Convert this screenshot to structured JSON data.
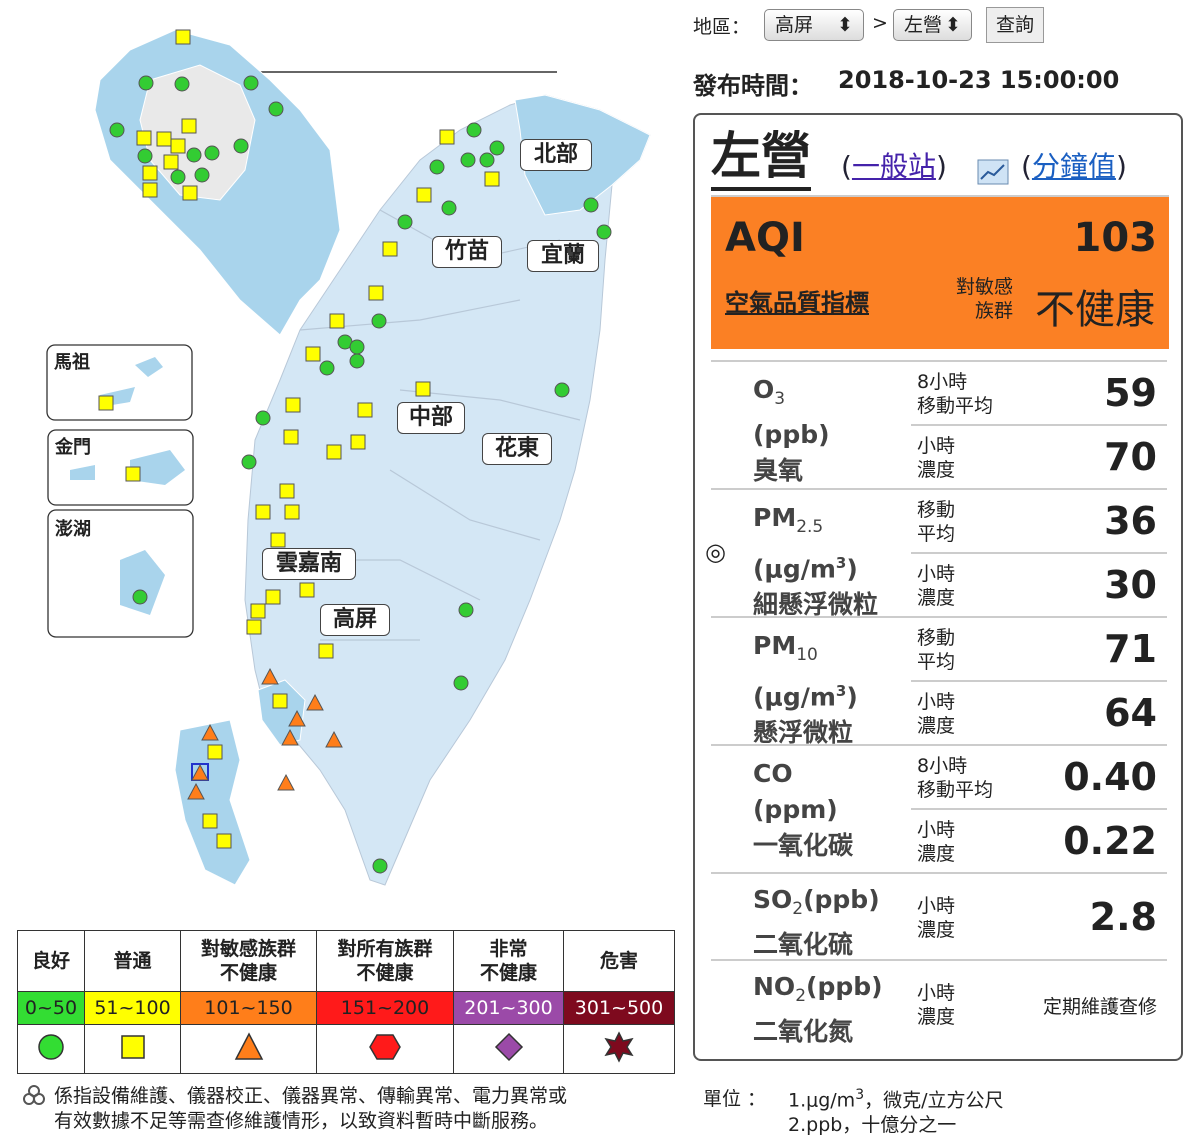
{
  "controls": {
    "region_label": "地區：",
    "region": "高屏",
    "separator": ">",
    "station": "左營",
    "query_button": "查詢"
  },
  "publish": {
    "label": "發布時間：",
    "time": "2018-10-23 15:00:00"
  },
  "map": {
    "regions": [
      "北部",
      "竹苗",
      "宜蘭",
      "中部",
      "花東",
      "雲嘉南",
      "高屏"
    ],
    "insets": [
      "馬祖",
      "金門",
      "澎湖"
    ]
  },
  "legend": {
    "categories": [
      {
        "name": [
          "良好"
        ],
        "range": "0~50",
        "color": "#33dd33"
      },
      {
        "name": [
          "普通"
        ],
        "range": "51~100",
        "color": "#ffff00"
      },
      {
        "name": [
          "對敏感族群",
          "不健康"
        ],
        "range": "101~150",
        "color": "#ff7e1a"
      },
      {
        "name": [
          "對所有族群",
          "不健康"
        ],
        "range": "151~200",
        "color": "#ff1a1a"
      },
      {
        "name": [
          "非常",
          "不健康"
        ],
        "range": "201~300",
        "color": "#9b4aa8"
      },
      {
        "name": [
          "危害"
        ],
        "range": "301~500",
        "color": "#7e0a1e"
      }
    ]
  },
  "note": [
    "係指設備維護、儀器校正、儀器異常、傳輸異常、電力異常或",
    "有效數據不足等需查修維護情形，以致資料暫時中斷服務。"
  ],
  "panel": {
    "station": "左營",
    "brackets": [
      "(",
      ")"
    ],
    "station_type": "一般站",
    "minute_link": "分鐘值",
    "aqi_label": "AQI",
    "aqi": "103",
    "aqi_name": "空氣品質指標",
    "status_small": [
      "對敏感",
      "族群"
    ],
    "status": "不健康",
    "pollutants": [
      {
        "name": "O",
        "sub": "3",
        "unit": [
          "(ppb)"
        ],
        "cname": "臭氧",
        "readings": [
          {
            "label": [
              "8小時",
              "移動平均"
            ],
            "value": "59"
          },
          {
            "label": [
              "小時",
              "濃度"
            ],
            "value": "70"
          }
        ]
      },
      {
        "marker": "◎",
        "name": "PM",
        "sub": "2.5",
        "unit": [
          "(μg/m",
          "3",
          ")"
        ],
        "cname": "細懸浮微粒",
        "readings": [
          {
            "label": [
              "移動",
              "平均"
            ],
            "value": "36"
          },
          {
            "label": [
              "小時",
              "濃度"
            ],
            "value": "30"
          }
        ]
      },
      {
        "name": "PM",
        "sub": "10",
        "unit": [
          "(μg/m",
          "3",
          ")"
        ],
        "cname": "懸浮微粒",
        "readings": [
          {
            "label": [
              "移動",
              "平均"
            ],
            "value": "71"
          },
          {
            "label": [
              "小時",
              "濃度"
            ],
            "value": "64"
          }
        ]
      },
      {
        "name": "CO",
        "unit": [
          "(ppm)"
        ],
        "cname": "一氧化碳",
        "readings": [
          {
            "label": [
              "8小時",
              "移動平均"
            ],
            "value": "0.40"
          },
          {
            "label": [
              "小時",
              "濃度"
            ],
            "value": "0.22"
          }
        ]
      },
      {
        "name": "SO",
        "sub": "2",
        "inline_unit": "(ppb)",
        "cname": "二氧化硫",
        "readings": [
          {
            "label": [
              "小時",
              "濃度"
            ],
            "value": "2.8"
          }
        ]
      },
      {
        "name": "NO",
        "sub": "2",
        "inline_unit": "(ppb)",
        "cname": "二氧化氮",
        "readings": [
          {
            "label": [
              "小時",
              "濃度"
            ],
            "value": "定期維護查修"
          }
        ]
      }
    ]
  },
  "units": {
    "label": "單位 ：",
    "line1": [
      "1.μg/m",
      "3",
      "，微克/立方公尺"
    ],
    "line2": "2.ppb，十億分之一"
  }
}
